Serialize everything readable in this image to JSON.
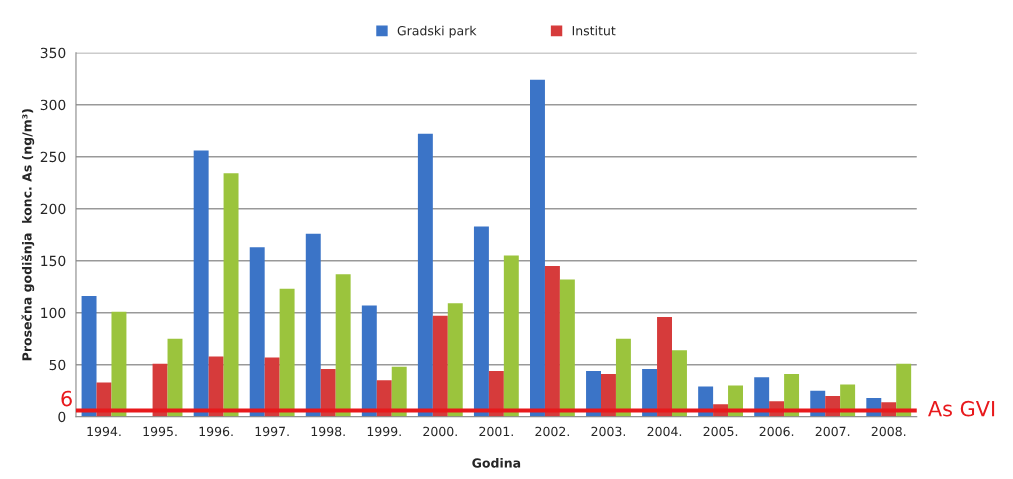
{
  "chart_data": {
    "type": "bar",
    "xlabel": "Godina",
    "ylabel": "Prosečna godišnja  konc. As (ng/m³)",
    "categories": [
      "1994.",
      "1995.",
      "1996.",
      "1997.",
      "1998.",
      "1999.",
      "2000.",
      "2001.",
      "2002.",
      "2003.",
      "2004.",
      "2005.",
      "2006.",
      "2007.",
      "2008."
    ],
    "series": [
      {
        "name": "Gradski park",
        "color": "#3b74c7",
        "values": [
          116,
          null,
          256,
          163,
          176,
          107,
          272,
          183,
          324,
          44,
          46,
          29,
          38,
          25,
          18
        ]
      },
      {
        "name": "Institut",
        "color": "#d63b3b",
        "values": [
          33,
          51,
          58,
          57,
          46,
          35,
          97,
          44,
          145,
          41,
          96,
          12,
          15,
          20,
          14
        ]
      },
      {
        "color": "#9bc43d",
        "values": [
          101,
          75,
          234,
          123,
          137,
          48,
          109,
          155,
          132,
          75,
          64,
          30,
          41,
          31,
          51
        ]
      }
    ],
    "ylim": [
      0,
      350
    ],
    "yticks": [
      0,
      50,
      100,
      150,
      200,
      250,
      300,
      350
    ],
    "grid": "y",
    "legend": "top",
    "ref_lines": [
      {
        "axis": "y",
        "value": 6,
        "label": "As GVI",
        "color": "#e8191c"
      }
    ],
    "annotations": [
      "6"
    ]
  }
}
